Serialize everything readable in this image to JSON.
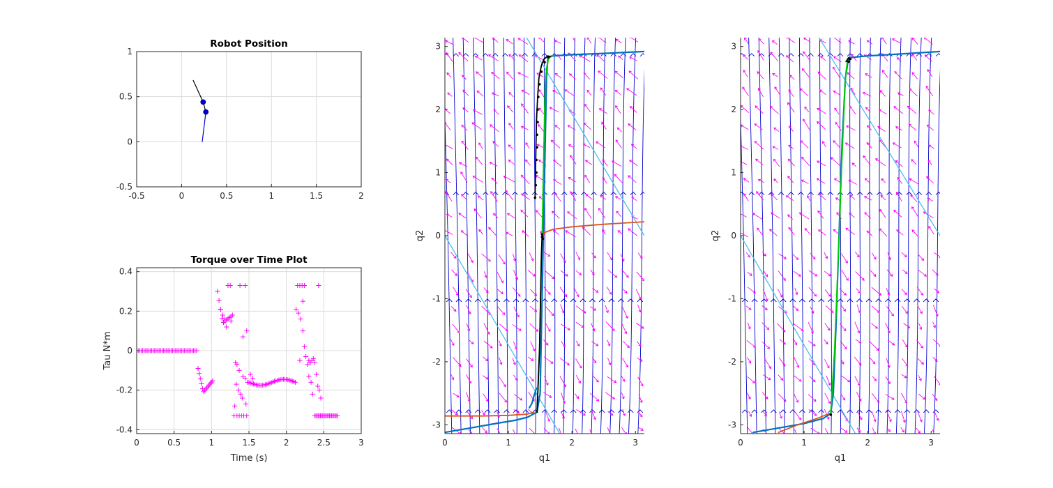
{
  "colors": {
    "axis": "#262626",
    "grid": "#dcdcdc",
    "magenta": "#ff00ff",
    "blue_flow": "#0000cc",
    "traj_blue": "#0072bd",
    "traj_orange": "#d95319",
    "traj_cyan": "#4dbeee",
    "traj_green": "#00cc00",
    "black": "#000000",
    "joint_dot": "#0000cc"
  },
  "chart_data": [
    {
      "id": "robot",
      "type": "line",
      "title": "Robot Position",
      "xlabel": "",
      "ylabel": "",
      "xlim": [
        -0.5,
        2
      ],
      "ylim": [
        -0.5,
        1
      ],
      "grid": true,
      "xticks": [
        -0.5,
        0,
        0.5,
        1,
        1.5,
        2
      ],
      "yticks": [
        -0.5,
        0,
        0.5,
        1
      ],
      "xtick_labels": [
        "-0.5",
        "0",
        "0.5",
        "1",
        "1.5",
        "2"
      ],
      "ytick_labels": [
        "-0.5",
        "0",
        "0.5",
        "1"
      ],
      "series": [
        {
          "color": "blue",
          "x": [
            0.23,
            0.27
          ],
          "y": [
            0.0,
            0.33
          ]
        },
        {
          "color": "black",
          "x": [
            0.27,
            0.24,
            0.13
          ],
          "y": [
            0.33,
            0.44,
            0.68
          ]
        }
      ],
      "joints": [
        {
          "x": 0.24,
          "y": 0.44
        },
        {
          "x": 0.27,
          "y": 0.33
        }
      ]
    },
    {
      "id": "torque",
      "type": "scatter",
      "title": "Torque over Time Plot",
      "xlabel": "Time (s)",
      "ylabel": "Tau N*m",
      "xlim": [
        0,
        3
      ],
      "ylim": [
        -0.42,
        0.42
      ],
      "grid": true,
      "xticks": [
        0,
        0.5,
        1,
        1.5,
        2,
        2.5,
        3
      ],
      "yticks": [
        -0.4,
        -0.2,
        0,
        0.2,
        0.4
      ],
      "xtick_labels": [
        "0",
        "0.5",
        "1",
        "1.5",
        "2",
        "2.5",
        "3"
      ],
      "ytick_labels": [
        "-0.4",
        "-0.2",
        "0",
        "0.2",
        "0.4"
      ],
      "segments": [
        {
          "kind": "const",
          "x0": 0.0,
          "x1": 0.8,
          "step": 0.02,
          "y": 0.0
        },
        {
          "kind": "dip",
          "x0": 0.82,
          "x1": 1.02,
          "step": 0.015,
          "ya": -0.09,
          "yb": -0.21,
          "yc": -0.15
        },
        {
          "kind": "dip",
          "x0": 1.08,
          "x1": 1.28,
          "step": 0.02,
          "ya": 0.3,
          "yb": 0.14,
          "yc": 0.18
        },
        {
          "kind": "wave",
          "x0": 1.5,
          "x1": 2.12,
          "step": 0.02,
          "y": -0.16,
          "amp": 0.015
        },
        {
          "kind": "const",
          "x0": 2.38,
          "x1": 2.68,
          "step": 0.015,
          "y": -0.33
        }
      ],
      "points": [
        [
          1.22,
          0.33
        ],
        [
          1.25,
          0.33
        ],
        [
          1.38,
          0.33
        ],
        [
          1.45,
          0.33
        ],
        [
          1.12,
          0.21
        ],
        [
          1.15,
          0.18
        ],
        [
          1.18,
          0.16
        ],
        [
          1.26,
          0.15
        ],
        [
          1.2,
          0.12
        ],
        [
          1.32,
          -0.06
        ],
        [
          1.34,
          -0.07
        ],
        [
          1.37,
          -0.1
        ],
        [
          1.42,
          -0.13
        ],
        [
          1.45,
          -0.14
        ],
        [
          1.48,
          -0.16
        ],
        [
          1.33,
          -0.17
        ],
        [
          1.36,
          -0.2
        ],
        [
          1.39,
          -0.22
        ],
        [
          1.41,
          -0.24
        ],
        [
          1.46,
          -0.27
        ],
        [
          1.31,
          -0.28
        ],
        [
          1.3,
          -0.33
        ],
        [
          1.34,
          -0.33
        ],
        [
          1.37,
          -0.33
        ],
        [
          1.4,
          -0.33
        ],
        [
          1.43,
          -0.33
        ],
        [
          1.47,
          -0.33
        ],
        [
          1.42,
          0.07
        ],
        [
          1.47,
          0.1
        ],
        [
          1.52,
          -0.12
        ],
        [
          1.55,
          -0.14
        ],
        [
          2.15,
          0.33
        ],
        [
          2.18,
          0.33
        ],
        [
          2.21,
          0.33
        ],
        [
          2.24,
          0.33
        ],
        [
          2.43,
          0.33
        ],
        [
          2.13,
          0.21
        ],
        [
          2.16,
          0.19
        ],
        [
          2.19,
          0.16
        ],
        [
          2.22,
          0.25
        ],
        [
          2.22,
          0.1
        ],
        [
          2.24,
          0.02
        ],
        [
          2.18,
          -0.05
        ],
        [
          2.26,
          -0.03
        ],
        [
          2.28,
          -0.07
        ],
        [
          2.3,
          -0.05
        ],
        [
          2.32,
          -0.06
        ],
        [
          2.34,
          -0.05
        ],
        [
          2.36,
          -0.04
        ],
        [
          2.38,
          -0.06
        ],
        [
          2.3,
          -0.13
        ],
        [
          2.33,
          -0.16
        ],
        [
          2.35,
          -0.22
        ],
        [
          2.4,
          -0.12
        ],
        [
          2.42,
          -0.18
        ],
        [
          2.44,
          -0.2
        ],
        [
          2.46,
          -0.24
        ]
      ]
    },
    {
      "id": "phase1",
      "type": "line",
      "title": "",
      "xlabel": "q1",
      "ylabel": "q2",
      "xlim": [
        0,
        3.14
      ],
      "ylim": [
        -3.14,
        3.14
      ],
      "grid": false,
      "xticks": [
        0,
        1,
        2,
        3
      ],
      "yticks": [
        -3,
        -2,
        -1,
        0,
        1,
        2,
        3
      ],
      "xtick_labels": [
        "0",
        "1",
        "2",
        "3"
      ],
      "ytick_labels": [
        "-3",
        "-2",
        "-1",
        "0",
        "1",
        "2",
        "3"
      ],
      "cyan_lines": [
        [
          [
            1.25,
            3.2
          ],
          [
            3.14,
            0.0
          ]
        ],
        [
          [
            0.0,
            0.0
          ],
          [
            1.9,
            -3.3
          ]
        ]
      ],
      "series": [
        {
          "color": "blue",
          "x": [
            0.0,
            0.4,
            0.8,
            1.1,
            1.3,
            1.45,
            1.5,
            1.52,
            1.55,
            1.58,
            1.6,
            1.62,
            1.7,
            2.0,
            2.5,
            3.14
          ],
          "y": [
            -3.12,
            -3.05,
            -2.98,
            -2.93,
            -2.88,
            -2.8,
            -2.5,
            -1.5,
            0.0,
            1.5,
            2.5,
            2.82,
            2.85,
            2.87,
            2.89,
            2.92
          ]
        },
        {
          "color": "orange",
          "x": [
            0.0,
            0.6,
            1.0,
            1.3,
            1.4
          ],
          "y": [
            -2.86,
            -2.86,
            -2.85,
            -2.83,
            -2.8
          ]
        },
        {
          "color": "orange",
          "x": [
            1.53,
            1.57,
            1.7,
            2.0,
            2.5,
            3.14
          ],
          "y": [
            -0.02,
            0.05,
            0.1,
            0.14,
            0.18,
            0.22
          ]
        },
        {
          "color": "blue",
          "x": [
            1.33,
            1.37,
            1.4,
            1.44
          ],
          "y": [
            -2.73,
            -2.66,
            -2.55,
            -2.42
          ]
        },
        {
          "color": "green",
          "x": [
            1.45,
            1.47,
            1.49,
            1.5,
            1.51,
            1.52,
            1.53,
            1.54,
            1.55,
            1.56,
            1.57,
            1.58,
            1.6,
            1.63,
            1.67,
            1.72
          ],
          "y": [
            -2.8,
            -2.3,
            -1.8,
            -1.3,
            -0.8,
            -0.3,
            0.0,
            0.5,
            1.0,
            1.5,
            2.0,
            2.4,
            2.65,
            2.8,
            2.85,
            2.86
          ]
        },
        {
          "color": "black",
          "x": [
            1.45,
            1.47,
            1.49,
            1.5,
            1.51,
            1.52,
            1.53
          ],
          "y": [
            -2.8,
            -2.3,
            -1.8,
            -1.3,
            -0.8,
            -0.3,
            0.0
          ]
        },
        {
          "color": "black",
          "x": [
            1.42,
            1.43,
            1.44,
            1.46,
            1.48,
            1.52,
            1.56,
            1.62,
            1.66
          ],
          "y": [
            0.6,
            1.2,
            1.8,
            2.2,
            2.5,
            2.7,
            2.8,
            2.85,
            2.84
          ]
        }
      ],
      "dots": [
        [
          1.42,
          0.6
        ],
        [
          1.43,
          0.8
        ],
        [
          1.44,
          1.0
        ],
        [
          1.44,
          1.2
        ],
        [
          1.45,
          1.4
        ],
        [
          1.45,
          1.6
        ],
        [
          1.46,
          1.8
        ],
        [
          1.46,
          2.0
        ],
        [
          1.47,
          2.2
        ],
        [
          1.49,
          2.4
        ],
        [
          1.52,
          2.6
        ],
        [
          1.57,
          2.75
        ],
        [
          1.63,
          2.83
        ],
        [
          1.53,
          -0.02
        ],
        [
          1.54,
          -0.05
        ],
        [
          1.53,
          0.02
        ]
      ]
    },
    {
      "id": "phase2",
      "type": "line",
      "title": "",
      "xlabel": "q1",
      "ylabel": "q2",
      "xlim": [
        0,
        3.14
      ],
      "ylim": [
        -3.14,
        3.14
      ],
      "grid": false,
      "xticks": [
        0,
        1,
        2,
        3
      ],
      "yticks": [
        -3,
        -2,
        -1,
        0,
        1,
        2,
        3
      ],
      "xtick_labels": [
        "0",
        "1",
        "2",
        "3"
      ],
      "ytick_labels": [
        "-3",
        "-2",
        "-1",
        "0",
        "1",
        "2",
        "3"
      ],
      "cyan_lines": [
        [
          [
            1.2,
            3.2
          ],
          [
            3.14,
            0.0
          ]
        ],
        [
          [
            0.0,
            0.0
          ],
          [
            1.9,
            -3.3
          ]
        ]
      ],
      "series": [
        {
          "color": "blue",
          "x": [
            0.2,
            0.6,
            1.0,
            1.3,
            1.42,
            1.46,
            1.5,
            1.55,
            1.6,
            1.65,
            1.7,
            2.0,
            2.5,
            3.14
          ],
          "y": [
            -3.12,
            -3.05,
            -2.98,
            -2.9,
            -2.82,
            -2.5,
            -1.5,
            0.0,
            1.5,
            2.5,
            2.82,
            2.85,
            2.88,
            2.92
          ]
        },
        {
          "color": "orange",
          "x": [
            0.6,
            0.9,
            1.2,
            1.4
          ],
          "y": [
            -3.12,
            -3.0,
            -2.9,
            -2.82
          ]
        },
        {
          "color": "green",
          "x": [
            1.42,
            1.45,
            1.48,
            1.5,
            1.52,
            1.54,
            1.56,
            1.58,
            1.6,
            1.62,
            1.64,
            1.66,
            1.68,
            1.72
          ],
          "y": [
            -2.82,
            -2.3,
            -1.8,
            -1.3,
            -0.8,
            -0.3,
            0.2,
            0.8,
            1.3,
            1.8,
            2.3,
            2.6,
            2.75,
            2.8
          ]
        },
        {
          "color": "black",
          "x": [
            1.66,
            1.7,
            1.74
          ],
          "y": [
            2.76,
            2.82,
            2.8
          ]
        }
      ],
      "dots": [
        [
          1.42,
          -2.84
        ],
        [
          1.72,
          2.8
        ],
        [
          1.7,
          2.76
        ]
      ]
    }
  ]
}
